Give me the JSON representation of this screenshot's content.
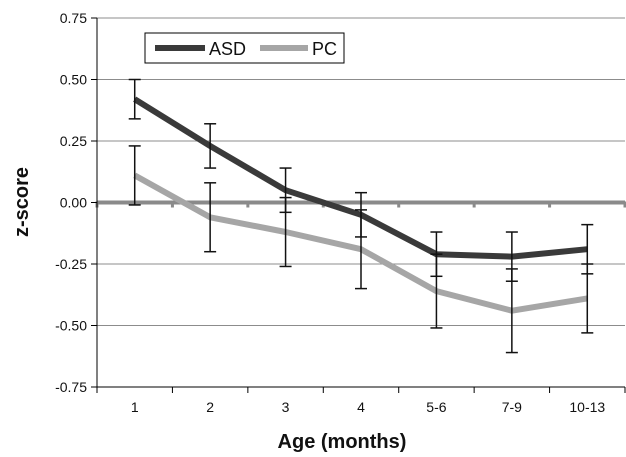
{
  "chart_data": {
    "type": "line",
    "title": "",
    "xlabel": "Age (months)",
    "ylabel": "z-score",
    "categories": [
      "1",
      "2",
      "3",
      "4",
      "5-6",
      "7-9",
      "10-13"
    ],
    "ylim": [
      -0.75,
      0.75
    ],
    "yticks": [
      "0.75",
      "0.50",
      "0.25",
      "0.00",
      "-0.25",
      "-0.50",
      "-0.75"
    ],
    "grid": true,
    "legend_position": "top-left",
    "series": [
      {
        "name": "ASD",
        "color": "#3a3a3a",
        "values": [
          0.42,
          0.23,
          0.05,
          -0.05,
          -0.21,
          -0.22,
          -0.19
        ],
        "error": [
          0.08,
          0.09,
          0.09,
          0.09,
          0.09,
          0.1,
          0.1
        ]
      },
      {
        "name": "PC",
        "color": "#a6a6a6",
        "values": [
          0.11,
          -0.06,
          -0.12,
          -0.19,
          -0.36,
          -0.44,
          -0.39
        ],
        "error": [
          0.12,
          0.14,
          0.14,
          0.16,
          0.15,
          0.17,
          0.14
        ]
      }
    ],
    "reference_line": {
      "value": 0.0,
      "color": "#8a8a8a"
    }
  }
}
